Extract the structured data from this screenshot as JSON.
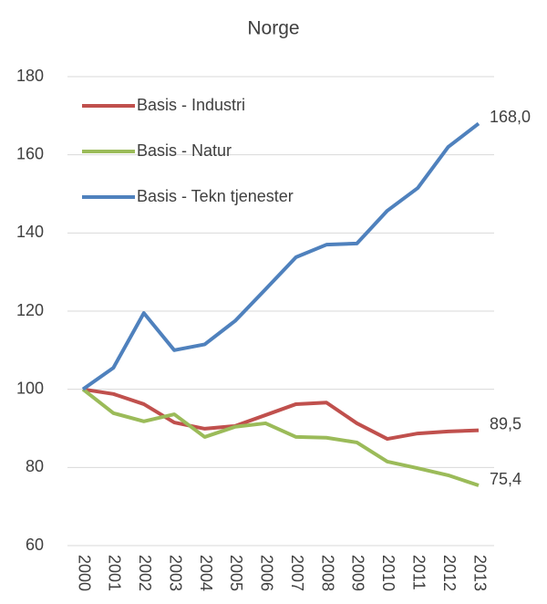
{
  "chart_data": {
    "type": "line",
    "title": "Norge",
    "categories": [
      "2000",
      "2001",
      "2002",
      "2003",
      "2004",
      "2005",
      "2006",
      "2007",
      "2008",
      "2009",
      "2010",
      "2011",
      "2012",
      "2013"
    ],
    "series": [
      {
        "name": "Basis - Industri",
        "color": "#c0504d",
        "values": [
          100,
          98.8,
          96.2,
          91.5,
          89.9,
          90.6,
          93.4,
          96.2,
          96.6,
          91.3,
          87.3,
          88.7,
          89.2,
          89.5
        ],
        "value_labels": [
          null,
          null,
          null,
          null,
          null,
          null,
          null,
          null,
          null,
          null,
          null,
          null,
          null,
          "89,5"
        ]
      },
      {
        "name": "Basis - Natur",
        "color": "#9bbb59",
        "values": [
          100,
          93.9,
          91.8,
          93.6,
          87.8,
          90.4,
          91.3,
          87.8,
          87.6,
          86.4,
          81.5,
          79.8,
          78,
          75.4
        ],
        "value_labels": [
          null,
          null,
          null,
          null,
          null,
          null,
          null,
          null,
          null,
          null,
          null,
          null,
          null,
          "75,4"
        ]
      },
      {
        "name": "Basis - Tekn tjenester",
        "color": "#4f81bd",
        "values": [
          100,
          105.5,
          119.5,
          110,
          111.5,
          117.5,
          125.6,
          133.8,
          137,
          137.3,
          145.7,
          151.5,
          162,
          168
        ],
        "value_labels": [
          null,
          null,
          null,
          null,
          null,
          null,
          null,
          null,
          null,
          null,
          null,
          null,
          null,
          "168,0"
        ]
      }
    ],
    "ylim": [
      60,
      180
    ],
    "yticks": [
      60,
      80,
      100,
      120,
      140,
      160,
      180
    ],
    "grid": true,
    "legend": "top-left"
  }
}
